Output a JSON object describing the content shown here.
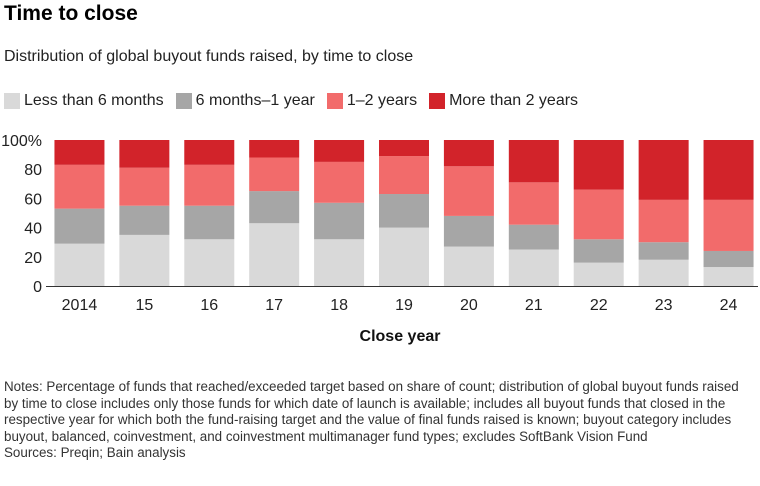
{
  "title": "Time to close",
  "subtitle": "Distribution of global buyout funds raised, by time to close",
  "colors": {
    "lt6": "#d9d9d9",
    "m6_1y": "#a6a6a6",
    "y1_2": "#f26b6b",
    "gt2": "#d2232a"
  },
  "legend": [
    {
      "key": "lt6",
      "label": "Less than 6 months"
    },
    {
      "key": "m6_1y",
      "label": "6 months–1 year"
    },
    {
      "key": "y1_2",
      "label": "1–2 years"
    },
    {
      "key": "gt2",
      "label": "More than 2 years"
    }
  ],
  "chart_data": {
    "type": "bar",
    "stacked": true,
    "title": "Time to close",
    "xlabel": "Close year",
    "ylabel": "",
    "ylim": [
      0,
      100
    ],
    "yticks": [
      0,
      20,
      40,
      60,
      80,
      100
    ],
    "ytick_labels": [
      "0",
      "20",
      "40",
      "60",
      "80",
      "100%"
    ],
    "categories": [
      "2014",
      "15",
      "16",
      "17",
      "18",
      "19",
      "20",
      "21",
      "22",
      "23",
      "24"
    ],
    "series": [
      {
        "name": "Less than 6 months",
        "key": "lt6",
        "values": [
          29,
          35,
          32,
          43,
          32,
          40,
          27,
          25,
          16,
          18,
          13
        ]
      },
      {
        "name": "6 months–1 year",
        "key": "m6_1y",
        "values": [
          24,
          20,
          23,
          22,
          25,
          23,
          21,
          17,
          16,
          12,
          11
        ]
      },
      {
        "name": "1–2 years",
        "key": "y1_2",
        "values": [
          30,
          26,
          28,
          23,
          28,
          26,
          34,
          29,
          34,
          29,
          35
        ]
      },
      {
        "name": "More than 2 years",
        "key": "gt2",
        "values": [
          17,
          19,
          17,
          12,
          15,
          11,
          18,
          29,
          34,
          41,
          41
        ]
      }
    ]
  },
  "notes": "Notes: Percentage of funds that reached/exceeded target based on share of count; distribution of global buyout funds raised by time to close includes only those funds for which date of launch is available; includes all buyout funds that closed in the respective year for which both the fund-raising target and the value of final funds raised is known; buyout category includes buyout, balanced, coinvestment, and coinvestment multimanager fund types; excludes SoftBank Vision Fund",
  "sources": "Sources: Preqin; Bain analysis"
}
